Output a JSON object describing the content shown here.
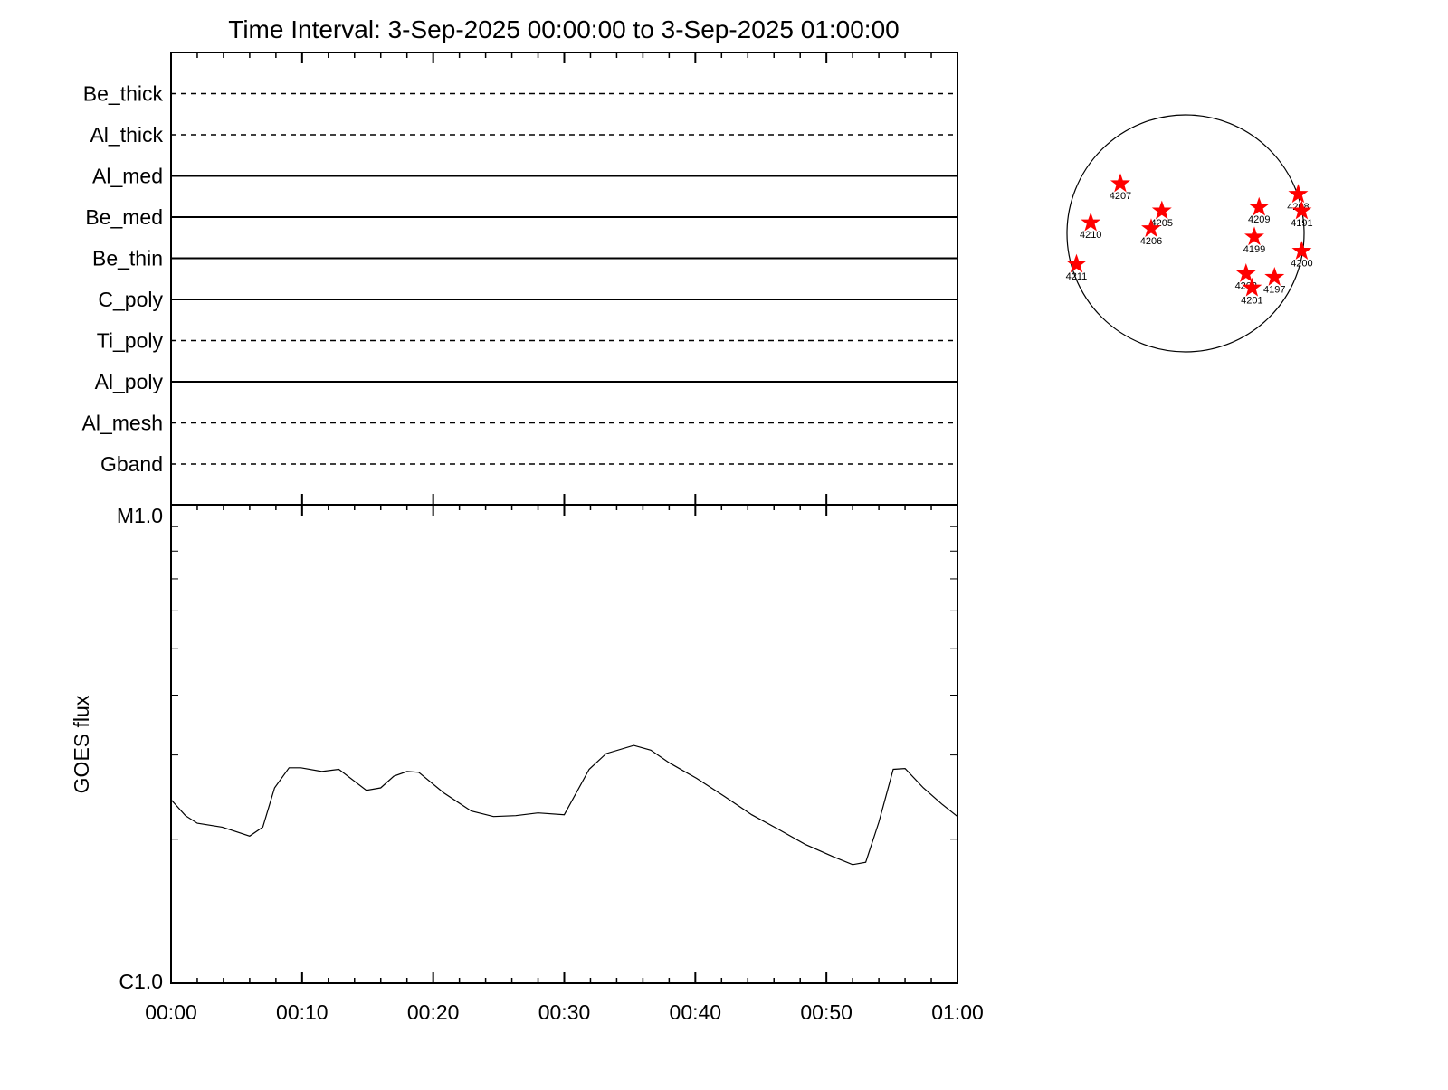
{
  "chart_data": [
    {
      "type": "lanes",
      "title": "Time Interval:  3-Sep-2025 00:00:00 to  3-Sep-2025 01:00:00",
      "categories": [
        "Be_thick",
        "Al_thick",
        "Al_med",
        "Be_med",
        "Be_thin",
        "C_poly",
        "Ti_poly",
        "Al_poly",
        "Al_mesh",
        "Gband"
      ],
      "linestyles": [
        "dashed",
        "dashed",
        "solid",
        "solid",
        "solid",
        "solid",
        "dashed",
        "solid",
        "dashed",
        "dashed"
      ],
      "color": "#000000"
    },
    {
      "type": "line",
      "ylabel": "GOES flux",
      "log_scale": true,
      "color": "#000000",
      "x": [
        0,
        1.1,
        2,
        3.9,
        6,
        7,
        7.9,
        9,
        9.9,
        11.5,
        12.8,
        14.9,
        16,
        17,
        18,
        18.9,
        20.8,
        22.9,
        24.6,
        26.3,
        28,
        30,
        31.9,
        33.2,
        35.3,
        36.6,
        38,
        40.1,
        42.2,
        44.3,
        46.3,
        48.4,
        50.5,
        52,
        53,
        54,
        55.1,
        56,
        57.4,
        58.8,
        60
      ],
      "values": [
        2.42e-06,
        2.24e-06,
        2.16e-06,
        2.12e-06,
        2.03e-06,
        2.12e-06,
        2.56e-06,
        2.82e-06,
        2.82e-06,
        2.77e-06,
        2.8e-06,
        2.53e-06,
        2.56e-06,
        2.71e-06,
        2.77e-06,
        2.76e-06,
        2.5e-06,
        2.29e-06,
        2.23e-06,
        2.24e-06,
        2.27e-06,
        2.25e-06,
        2.8e-06,
        3.02e-06,
        3.14e-06,
        3.07e-06,
        2.89e-06,
        2.68e-06,
        2.46e-06,
        2.25e-06,
        2.1e-06,
        1.95e-06,
        1.84e-06,
        1.77e-06,
        1.79e-06,
        2.17e-06,
        2.8e-06,
        2.81e-06,
        2.56e-06,
        2.37e-06,
        2.23e-06
      ],
      "xlim": [
        0,
        60
      ],
      "xticks": [
        {
          "value": 0,
          "label": "00:00"
        },
        {
          "value": 10,
          "label": "00:10"
        },
        {
          "value": 20,
          "label": "00:20"
        },
        {
          "value": 30,
          "label": "00:30"
        },
        {
          "value": 40,
          "label": "00:40"
        },
        {
          "value": 50,
          "label": "00:50"
        },
        {
          "value": 60,
          "label": "01:00"
        }
      ],
      "xminorticks": [
        2,
        4,
        6,
        8,
        12,
        14,
        16,
        18,
        22,
        24,
        26,
        28,
        32,
        34,
        36,
        38,
        42,
        44,
        46,
        48,
        52,
        54,
        56,
        58
      ],
      "ylim": [
        1e-06,
        1e-05
      ],
      "yticks": [
        {
          "value": 1e-06,
          "label": "C1.0"
        },
        {
          "value": 1e-05,
          "label": "M1.0"
        }
      ],
      "yminorticks": [
        2e-06,
        3e-06,
        4e-06,
        5e-06,
        6e-06,
        7e-06,
        8e-06,
        9e-06
      ]
    },
    {
      "type": "scatter",
      "color": "#ff0000",
      "xlim": [
        -1,
        1
      ],
      "ylim": [
        -1,
        1
      ],
      "labels": [
        "4207",
        "4205",
        "4206",
        "4210",
        "4211",
        "4209",
        "4199",
        "4208",
        "4191",
        "4200",
        "4202",
        "4201",
        "4197"
      ],
      "x": [
        -0.55,
        -0.2,
        -0.29,
        -0.8,
        -0.92,
        0.62,
        0.58,
        0.95,
        0.98,
        0.98,
        0.51,
        0.56,
        0.75
      ],
      "y": [
        0.42,
        0.19,
        0.04,
        0.09,
        -0.26,
        0.22,
        -0.03,
        0.33,
        0.19,
        -0.15,
        -0.34,
        -0.46,
        -0.37
      ]
    }
  ]
}
